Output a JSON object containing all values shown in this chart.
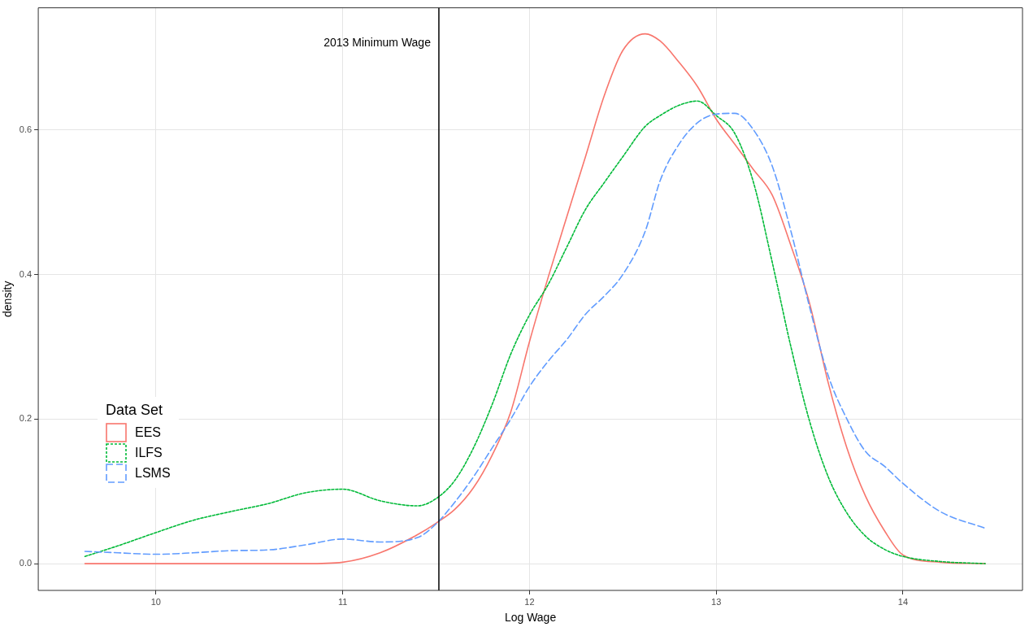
{
  "chart_data": {
    "type": "line",
    "xlabel": "Log Wage",
    "ylabel": "density",
    "legend_title": "Data Set",
    "xlim": [
      9.37,
      14.64
    ],
    "ylim": [
      -0.037,
      0.769
    ],
    "xticks": [
      10,
      11,
      12,
      13,
      14
    ],
    "yticks": [
      {
        "value": 0,
        "label": "0.0"
      },
      {
        "value": 0.2,
        "label": "0.2"
      },
      {
        "value": 0.4,
        "label": "0.4"
      },
      {
        "value": 0.6,
        "label": "0.6"
      }
    ],
    "x": [
      9.62,
      9.8,
      10,
      10.2,
      10.4,
      10.6,
      10.8,
      11,
      11.2,
      11.4,
      11.5,
      11.6,
      11.7,
      11.8,
      11.9,
      12,
      12.1,
      12.2,
      12.3,
      12.4,
      12.5,
      12.62,
      12.7,
      12.8,
      12.9,
      13,
      13.1,
      13.2,
      13.3,
      13.4,
      13.5,
      13.6,
      13.7,
      13.8,
      13.9,
      14,
      14.2,
      14.44
    ],
    "series": [
      {
        "name": "EES",
        "color": "#f8766d",
        "line_style": "solid",
        "values": [
          0,
          0,
          0,
          0,
          0,
          0,
          0,
          0.002,
          0.015,
          0.04,
          0.056,
          0.075,
          0.105,
          0.15,
          0.21,
          0.307,
          0.396,
          0.48,
          0.563,
          0.647,
          0.71,
          0.733,
          0.723,
          0.694,
          0.66,
          0.615,
          0.58,
          0.545,
          0.51,
          0.44,
          0.36,
          0.25,
          0.16,
          0.093,
          0.046,
          0.012,
          0.002,
          0
        ]
      },
      {
        "name": "ILFS",
        "color": "#00ba38",
        "line_style": "dotted",
        "values": [
          0.01,
          0.025,
          0.043,
          0.06,
          0.072,
          0.083,
          0.098,
          0.103,
          0.087,
          0.08,
          0.09,
          0.115,
          0.16,
          0.22,
          0.29,
          0.344,
          0.386,
          0.438,
          0.49,
          0.527,
          0.563,
          0.605,
          0.62,
          0.634,
          0.64,
          0.62,
          0.595,
          0.527,
          0.417,
          0.3,
          0.197,
          0.12,
          0.07,
          0.038,
          0.02,
          0.01,
          0.003,
          0
        ]
      },
      {
        "name": "LSMS",
        "color": "#619cff",
        "line_style": "dashed",
        "values": [
          0.017,
          0.015,
          0.013,
          0.015,
          0.018,
          0.019,
          0.026,
          0.034,
          0.03,
          0.036,
          0.055,
          0.085,
          0.12,
          0.16,
          0.2,
          0.245,
          0.28,
          0.31,
          0.345,
          0.37,
          0.4,
          0.46,
          0.53,
          0.58,
          0.61,
          0.622,
          0.623,
          0.6,
          0.55,
          0.46,
          0.355,
          0.26,
          0.2,
          0.155,
          0.135,
          0.111,
          0.072,
          0.049
        ]
      }
    ],
    "ref_lines": [
      {
        "axis": "x",
        "value": 11.515,
        "label": "2013 Minimum Wage",
        "color": "#000000"
      }
    ],
    "grid": true,
    "legend": "bottom left"
  }
}
